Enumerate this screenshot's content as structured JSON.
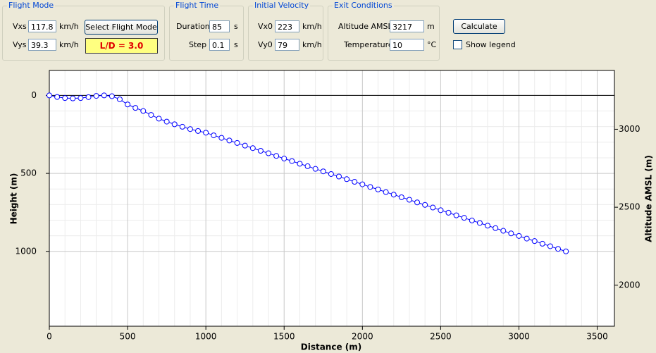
{
  "form": {
    "groups": [
      {
        "title": "Flight Mode",
        "fields": [
          {
            "label": "Vxs",
            "value": "117.8",
            "unit": "km/h"
          },
          {
            "label": "Vys",
            "value": "39.3",
            "unit": "km/h"
          }
        ],
        "button": "Select Flight Mode",
        "badge": "L/D = 3.0"
      },
      {
        "title": "Flight Time",
        "fields": [
          {
            "label": "Duration",
            "value": "85",
            "unit": "s"
          },
          {
            "label": "Step",
            "value": "0.1",
            "unit": "s"
          }
        ]
      },
      {
        "title": "Initial Velocity",
        "fields": [
          {
            "label": "Vx0",
            "value": "223",
            "unit": "km/h"
          },
          {
            "label": "Vy0",
            "value": "79",
            "unit": "km/h"
          }
        ]
      },
      {
        "title": "Exit Conditions",
        "fields": [
          {
            "label": "Altitude AMSL",
            "value": "3217",
            "unit": "m"
          },
          {
            "label": "Temperature",
            "value": "10",
            "unit": "°C"
          }
        ]
      }
    ],
    "calculate": "Calculate",
    "show_legend": "Show legend"
  },
  "chart_data": {
    "type": "line",
    "x_label": "Distance (m)",
    "y_label": "Height (m)",
    "y2_label": "Altitude AMSL (m)",
    "x": [
      0,
      50,
      100,
      150,
      200,
      250,
      300,
      350,
      400,
      450,
      500,
      550,
      600,
      650,
      700,
      750,
      800,
      850,
      900,
      950,
      1000,
      1050,
      1100,
      1150,
      1200,
      1250,
      1300,
      1350,
      1400,
      1450,
      1500,
      1550,
      1600,
      1650,
      1700,
      1750,
      1800,
      1850,
      1900,
      1950,
      2000,
      2050,
      2100,
      2150,
      2200,
      2250,
      2300,
      2350,
      2400,
      2450,
      2500,
      2550,
      2600,
      2650,
      2700,
      2750,
      2800,
      2850,
      2900,
      2950,
      3000,
      3050,
      3100,
      3150,
      3200,
      3250,
      3300
    ],
    "series": [
      {
        "color": "#0000ff",
        "values": [
          0,
          10,
          17,
          19,
          17,
          11,
          3,
          0,
          5,
          25,
          58,
          80,
          100,
          125,
          149,
          168,
          185,
          201,
          216,
          228,
          239,
          256,
          272,
          289,
          305,
          322,
          338,
          355,
          371,
          388,
          405,
          421,
          438,
          454,
          471,
          487,
          504,
          520,
          537,
          554,
          570,
          587,
          603,
          620,
          636,
          653,
          669,
          686,
          702,
          719,
          736,
          752,
          769,
          785,
          802,
          818,
          835,
          851,
          868,
          885,
          901,
          918,
          934,
          951,
          967,
          984,
          1000
        ]
      }
    ],
    "xlim": [
      0,
      3610
    ],
    "xticks": [
      0,
      500,
      1000,
      1500,
      2000,
      2500,
      3000,
      3500
    ],
    "ylim": [
      1480,
      -160
    ],
    "yticks": [
      0,
      500,
      1000
    ],
    "y2lim": [
      1737,
      3377
    ],
    "y2ticks": [
      2000,
      2500,
      3000
    ],
    "grid": true
  }
}
